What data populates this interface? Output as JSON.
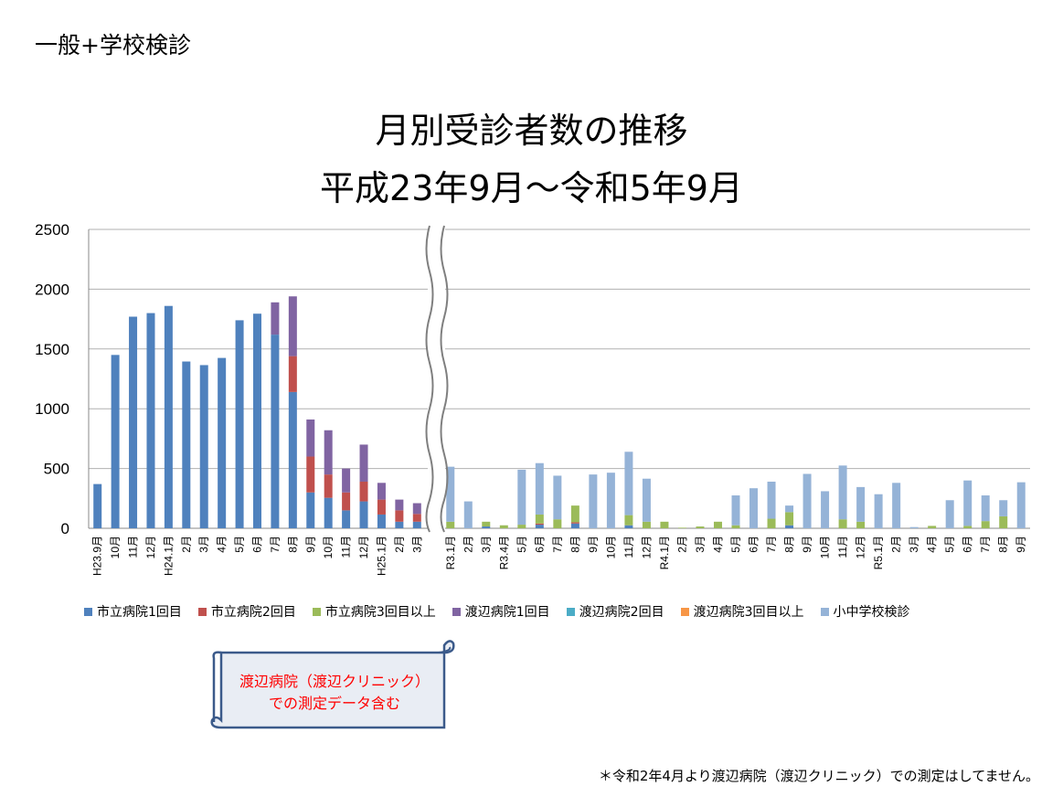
{
  "header": "一般+学校検診",
  "title_line1": "月別受診者数の推移",
  "title_line2": "平成23年9月～令和5年9月",
  "callout": [
    "渡辺病院（渡辺クリニック）",
    "での測定データ含む"
  ],
  "footnote": "＊令和2年4月より渡辺病院（渡辺クリニック）での測定はしてません。",
  "chart_data": {
    "type": "bar",
    "stacked": true,
    "ylim": [
      0,
      2500
    ],
    "yticks": [
      0,
      500,
      1000,
      1500,
      2000,
      2500
    ],
    "grid": true,
    "legend_position": "bottom",
    "axis_break": "between 3月 (H25) and R3.1月",
    "series": [
      {
        "name": "市立病院1回目",
        "color": "#4F81BD"
      },
      {
        "name": "市立病院2回目",
        "color": "#C0504D"
      },
      {
        "name": "市立病院3回目以上",
        "color": "#9BBB59"
      },
      {
        "name": "渡辺病院1回目",
        "color": "#8064A2"
      },
      {
        "name": "渡辺病院2回目",
        "color": "#4BACC6"
      },
      {
        "name": "渡辺病院3回目以上",
        "color": "#F79646"
      },
      {
        "name": "小中学校検診",
        "color": "#95B3D7"
      }
    ],
    "segments": [
      {
        "categories": [
          "H23.9月",
          "10月",
          "11月",
          "12月",
          "H24.1月",
          "2月",
          "3月",
          "4月",
          "5月",
          "6月",
          "7月",
          "8月",
          "9月",
          "10月",
          "11月",
          "12月",
          "H25.1月",
          "2月",
          "3月"
        ],
        "values": [
          [
            370,
            0,
            0,
            0,
            0,
            0,
            0
          ],
          [
            1450,
            0,
            0,
            0,
            0,
            0,
            0
          ],
          [
            1770,
            0,
            0,
            0,
            0,
            0,
            0
          ],
          [
            1800,
            0,
            0,
            0,
            0,
            0,
            0
          ],
          [
            1860,
            0,
            0,
            0,
            0,
            0,
            0
          ],
          [
            1395,
            0,
            0,
            0,
            0,
            0,
            0
          ],
          [
            1365,
            0,
            0,
            0,
            0,
            0,
            0
          ],
          [
            1425,
            0,
            0,
            0,
            0,
            0,
            0
          ],
          [
            1740,
            0,
            0,
            0,
            0,
            0,
            0
          ],
          [
            1795,
            0,
            0,
            0,
            0,
            0,
            0
          ],
          [
            1620,
            0,
            0,
            270,
            0,
            0,
            0
          ],
          [
            1140,
            300,
            0,
            500,
            0,
            0,
            0
          ],
          [
            300,
            300,
            0,
            310,
            0,
            0,
            0
          ],
          [
            255,
            195,
            0,
            370,
            0,
            0,
            0
          ],
          [
            150,
            150,
            0,
            200,
            0,
            0,
            0
          ],
          [
            225,
            165,
            0,
            310,
            0,
            0,
            0
          ],
          [
            115,
            125,
            0,
            140,
            0,
            0,
            0
          ],
          [
            55,
            95,
            0,
            90,
            0,
            0,
            0
          ],
          [
            55,
            65,
            0,
            90,
            0,
            0,
            0
          ]
        ]
      },
      {
        "categories": [
          "R3.1月",
          "2月",
          "3月",
          "R3.4月",
          "5月",
          "6月",
          "7月",
          "8月",
          "9月",
          "10月",
          "11月",
          "12月",
          "R4.1月",
          "2月",
          "3月",
          "4月",
          "5月",
          "6月",
          "7月",
          "8月",
          "9月",
          "10月",
          "11月",
          "12月",
          "R5.1月",
          "2月",
          "3月",
          "4月",
          "5月",
          "6月",
          "7月",
          "8月",
          "9月"
        ],
        "values": [
          [
            0,
            0,
            55,
            0,
            0,
            0,
            460
          ],
          [
            0,
            0,
            0,
            0,
            0,
            0,
            225
          ],
          [
            15,
            0,
            40,
            0,
            0,
            0,
            0
          ],
          [
            0,
            0,
            25,
            0,
            0,
            0,
            0
          ],
          [
            0,
            0,
            30,
            0,
            0,
            0,
            460
          ],
          [
            30,
            10,
            75,
            0,
            0,
            0,
            430
          ],
          [
            0,
            0,
            75,
            0,
            0,
            0,
            365
          ],
          [
            40,
            10,
            140,
            0,
            0,
            0,
            0
          ],
          [
            0,
            0,
            0,
            0,
            0,
            0,
            450
          ],
          [
            0,
            0,
            0,
            0,
            0,
            0,
            465
          ],
          [
            25,
            0,
            85,
            0,
            0,
            0,
            530
          ],
          [
            0,
            0,
            55,
            0,
            0,
            0,
            360
          ],
          [
            0,
            0,
            55,
            0,
            0,
            0,
            0
          ],
          [
            0,
            0,
            5,
            0,
            0,
            0,
            0
          ],
          [
            0,
            0,
            15,
            0,
            0,
            0,
            0
          ],
          [
            0,
            0,
            55,
            0,
            0,
            0,
            0
          ],
          [
            0,
            0,
            25,
            0,
            0,
            0,
            250
          ],
          [
            0,
            0,
            0,
            0,
            0,
            0,
            335
          ],
          [
            0,
            0,
            80,
            0,
            0,
            0,
            310
          ],
          [
            25,
            0,
            110,
            0,
            0,
            0,
            55
          ],
          [
            0,
            0,
            0,
            0,
            0,
            0,
            455
          ],
          [
            0,
            0,
            0,
            0,
            0,
            0,
            310
          ],
          [
            0,
            0,
            75,
            0,
            0,
            0,
            450
          ],
          [
            0,
            0,
            55,
            0,
            0,
            0,
            290
          ],
          [
            0,
            0,
            0,
            0,
            0,
            0,
            285
          ],
          [
            0,
            0,
            0,
            0,
            0,
            0,
            380
          ],
          [
            0,
            0,
            0,
            0,
            0,
            0,
            10
          ],
          [
            0,
            0,
            20,
            0,
            0,
            0,
            0
          ],
          [
            0,
            0,
            0,
            0,
            0,
            0,
            235
          ],
          [
            0,
            0,
            20,
            0,
            0,
            0,
            380
          ],
          [
            0,
            0,
            60,
            0,
            0,
            0,
            215
          ],
          [
            0,
            0,
            100,
            0,
            0,
            0,
            135
          ],
          [
            0,
            0,
            0,
            0,
            0,
            0,
            385
          ]
        ]
      }
    ]
  }
}
